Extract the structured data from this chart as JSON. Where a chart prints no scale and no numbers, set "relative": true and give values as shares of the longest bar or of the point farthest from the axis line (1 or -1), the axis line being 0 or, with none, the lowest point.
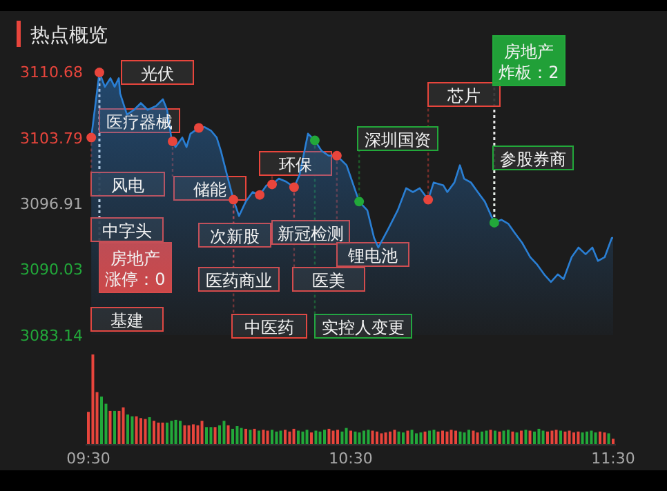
{
  "chart_data": [
    {
      "type": "area",
      "title": "热点概览",
      "xlim": [
        9.5,
        11.5
      ],
      "ylim": [
        3083.14,
        3110.68
      ],
      "yticks": [
        3083.14,
        3090.03,
        3096.91,
        3103.79,
        3110.68
      ],
      "tick_labels": "y",
      "series": [
        {
          "color": "#2a7fd4",
          "x": [
            9.511,
            9.542,
            9.563,
            9.584,
            9.6,
            9.616,
            9.621,
            9.647,
            9.674,
            9.7,
            9.726,
            9.758,
            9.784,
            9.8,
            9.816,
            9.832,
            9.858,
            9.874,
            9.889,
            9.921,
            9.942,
            9.968,
            9.989,
            10.005,
            10.032,
            10.053,
            10.074,
            10.1,
            10.126,
            10.153,
            10.179,
            10.2,
            10.226,
            10.253,
            10.284,
            10.305,
            10.337,
            10.363,
            10.389,
            10.416,
            10.447,
            10.484,
            10.532,
            10.563,
            10.589,
            10.605,
            10.642,
            10.679,
            10.711,
            10.737,
            10.763,
            10.795,
            10.816,
            10.853,
            10.868,
            10.895,
            10.916,
            10.932,
            10.958,
            10.984,
            11.011,
            11.047,
            11.074,
            11.1,
            11.126,
            11.153,
            11.184,
            11.211,
            11.237,
            11.263,
            11.289,
            11.311,
            11.342,
            11.368,
            11.395,
            11.421,
            11.442,
            11.468,
            11.495,
            11.5
          ],
          "values": [
            3103.8,
            3110.6,
            3109.1,
            3110.0,
            3109.1,
            3110.0,
            3108.4,
            3106.2,
            3106.7,
            3107.4,
            3106.7,
            3107.1,
            3107.8,
            3106.7,
            3103.8,
            3102.8,
            3103.8,
            3102.8,
            3104.2,
            3104.8,
            3104.9,
            3104.5,
            3103.8,
            3102.4,
            3099.5,
            3097.3,
            3095.6,
            3097.1,
            3098.1,
            3097.8,
            3098.8,
            3098.9,
            3099.5,
            3099.2,
            3098.6,
            3099.9,
            3104.2,
            3103.5,
            3102.4,
            3101.9,
            3101.9,
            3100.9,
            3097.1,
            3096.2,
            3093.3,
            3092.3,
            3094.2,
            3096.2,
            3098.5,
            3098.1,
            3098.5,
            3097.3,
            3099.1,
            3098.8,
            3098.1,
            3099.1,
            3100.9,
            3099.5,
            3099.1,
            3098.1,
            3097.1,
            3094.9,
            3095.2,
            3094.8,
            3093.8,
            3092.8,
            3091.3,
            3090.5,
            3089.5,
            3088.7,
            3089.5,
            3089.0,
            3091.3,
            3092.3,
            3091.6,
            3092.3,
            3090.9,
            3091.3,
            3093.3,
            3093.3
          ]
        },
        {
          "type": "scatter",
          "marker": "circle",
          "color": "#e8453c",
          "x": [
            9.542,
            9.511,
            9.821,
            9.921,
            10.053,
            10.153,
            10.2,
            10.284,
            10.447,
            10.795
          ],
          "values": [
            3110.6,
            3103.8,
            3103.4,
            3104.8,
            3097.3,
            3097.8,
            3098.9,
            3098.6,
            3101.9,
            3097.3
          ]
        },
        {
          "type": "scatter",
          "marker": "circle",
          "color": "#22a83a",
          "x": [
            10.363,
            10.532,
            11.047
          ],
          "values": [
            3103.5,
            3097.1,
            3094.9
          ]
        }
      ],
      "annotations": [
        {
          "text": "光伏",
          "x": 9.616,
          "y": 3110.0
        },
        {
          "text": "医疗器械",
          "x": 9.542,
          "y": 3110.68
        },
        {
          "text": "风电",
          "x": 9.511,
          "y": 3103.79
        },
        {
          "text": "储能",
          "x": 9.821,
          "y": 3103.4
        },
        "中字头",
        {
          "text": "次新股",
          "x": 10.053,
          "y": 3097.3
        },
        {
          "text": "医药商业",
          "x": 10.053,
          "y": 3097.3
        },
        "基建",
        {
          "text": "中医药",
          "x": 10.053,
          "y": 3097.3
        },
        {
          "text": "环保",
          "x": 10.2,
          "y": 3098.9
        },
        {
          "text": "新冠检测",
          "x": 10.284,
          "y": 3098.6
        },
        {
          "text": "医美",
          "x": 10.284,
          "y": 3098.6
        },
        {
          "text": "锂电池",
          "x": 10.447,
          "y": 3101.9
        },
        {
          "text": "实控人变更",
          "x": 10.363,
          "y": 3103.5
        },
        {
          "text": "深圳国资",
          "x": 10.532,
          "y": 3097.1
        },
        {
          "text": "芯片",
          "x": 10.795,
          "y": 3097.3
        },
        {
          "text": "参股券商",
          "x": 11.047,
          "y": 3094.9
        },
        {
          "text": "房地产涨停：0",
          "x": 9.542,
          "y": 3110.6
        },
        {
          "text": "房地产炸板：2",
          "x": 11.047,
          "y": 3094.9
        }
      ]
    },
    {
      "type": "bar",
      "relative": true,
      "xlim": [
        9.5,
        11.5
      ],
      "xticks": [
        {
          "value": 9.5,
          "label": "09:30"
        },
        {
          "value": 10.5,
          "label": "10:30"
        },
        {
          "value": 11.5,
          "label": "11:30"
        }
      ],
      "tick_labels": "x",
      "x": [
        9.5,
        9.517,
        9.533,
        9.55,
        9.567,
        9.583,
        9.6,
        9.617,
        9.633,
        9.65,
        9.667,
        9.683,
        9.7,
        9.717,
        9.733,
        9.75,
        9.767,
        9.783,
        9.8,
        9.817,
        9.833,
        9.85,
        9.867,
        9.883,
        9.9,
        9.917,
        9.933,
        9.95,
        9.967,
        9.983,
        10.0,
        10.017,
        10.033,
        10.05,
        10.067,
        10.083,
        10.1,
        10.117,
        10.133,
        10.15,
        10.167,
        10.183,
        10.2,
        10.217,
        10.233,
        10.25,
        10.267,
        10.283,
        10.3,
        10.317,
        10.333,
        10.35,
        10.367,
        10.383,
        10.4,
        10.417,
        10.433,
        10.45,
        10.467,
        10.483,
        10.5,
        10.517,
        10.533,
        10.55,
        10.567,
        10.583,
        10.6,
        10.617,
        10.633,
        10.65,
        10.667,
        10.683,
        10.7,
        10.717,
        10.733,
        10.75,
        10.767,
        10.783,
        10.8,
        10.817,
        10.833,
        10.85,
        10.867,
        10.883,
        10.9,
        10.917,
        10.933,
        10.95,
        10.967,
        10.983,
        11.0,
        11.017,
        11.033,
        11.05,
        11.067,
        11.083,
        11.1,
        11.117,
        11.133,
        11.15,
        11.167,
        11.183,
        11.2,
        11.217,
        11.233,
        11.25,
        11.267,
        11.283,
        11.3,
        11.317,
        11.333,
        11.35,
        11.367,
        11.383,
        11.4,
        11.417,
        11.433,
        11.45,
        11.467,
        11.483,
        11.5
      ],
      "values": [
        0.36,
        1,
        0.58,
        0.53,
        0.45,
        0.37,
        0.37,
        0.37,
        0.41,
        0.33,
        0.31,
        0.31,
        0.29,
        0.28,
        0.3,
        0.26,
        0.24,
        0.24,
        0.24,
        0.26,
        0.27,
        0.26,
        0.21,
        0.21,
        0.22,
        0.21,
        0.26,
        0.19,
        0.19,
        0.19,
        0.21,
        0.26,
        0.21,
        0.17,
        0.2,
        0.18,
        0.17,
        0.16,
        0.17,
        0.15,
        0.16,
        0.15,
        0.16,
        0.14,
        0.15,
        0.16,
        0.14,
        0.17,
        0.15,
        0.14,
        0.16,
        0.13,
        0.15,
        0.14,
        0.16,
        0.17,
        0.15,
        0.16,
        0.14,
        0.18,
        0.15,
        0.14,
        0.13,
        0.15,
        0.16,
        0.15,
        0.14,
        0.12,
        0.13,
        0.14,
        0.16,
        0.14,
        0.13,
        0.15,
        0.16,
        0.12,
        0.13,
        0.14,
        0.15,
        0.16,
        0.14,
        0.15,
        0.14,
        0.16,
        0.15,
        0.14,
        0.13,
        0.16,
        0.15,
        0.13,
        0.14,
        0.15,
        0.16,
        0.15,
        0.14,
        0.15,
        0.16,
        0.14,
        0.13,
        0.15,
        0.16,
        0.15,
        0.14,
        0.17,
        0.15,
        0.14,
        0.15,
        0.16,
        0.15,
        0.14,
        0.15,
        0.13,
        0.14,
        0.13,
        0.14,
        0.15,
        0.13,
        0.14,
        0.13,
        0.12,
        0.06
      ],
      "colors": [
        "#e8453c",
        "#e8453c",
        "#e8453c",
        "#22a83a",
        "#22a83a",
        "#e8453c",
        "#22a83a",
        "#e8453c",
        "#e8453c",
        "#22a83a",
        "#22a83a",
        "#e8453c",
        "#e8453c",
        "#e8453c",
        "#22a83a",
        "#e8453c",
        "#e8453c",
        "#e8453c",
        "#22a83a",
        "#22a83a",
        "#22a83a",
        "#22a83a",
        "#e8453c",
        "#e8453c",
        "#e8453c",
        "#e8453c",
        "#e8453c",
        "#22a83a",
        "#22a83a",
        "#e8453c",
        "#22a83a",
        "#22a83a",
        "#e8453c",
        "#22a83a",
        "#22a83a",
        "#22a83a",
        "#e8453c",
        "#22a83a",
        "#e8453c",
        "#22a83a",
        "#e8453c",
        "#e8453c",
        "#22a83a",
        "#22a83a",
        "#22a83a",
        "#e8453c",
        "#e8453c",
        "#e8453c",
        "#22a83a",
        "#22a83a",
        "#22a83a",
        "#e8453c",
        "#22a83a",
        "#22a83a",
        "#22a83a",
        "#e8453c",
        "#e8453c",
        "#e8453c",
        "#22a83a",
        "#22a83a",
        "#e8453c",
        "#22a83a",
        "#22a83a",
        "#22a83a",
        "#22a83a",
        "#e8453c",
        "#e8453c",
        "#e8453c",
        "#e8453c",
        "#e8453c",
        "#e8453c",
        "#22a83a",
        "#22a83a",
        "#e8453c",
        "#22a83a",
        "#22a83a",
        "#22a83a",
        "#e8453c",
        "#22a83a",
        "#22a83a",
        "#e8453c",
        "#e8453c",
        "#e8453c",
        "#e8453c",
        "#e8453c",
        "#22a83a",
        "#22a83a",
        "#22a83a",
        "#e8453c",
        "#e8453c",
        "#22a83a",
        "#22a83a",
        "#e8453c",
        "#22a83a",
        "#e8453c",
        "#22a83a",
        "#22a83a",
        "#e8453c",
        "#22a83a",
        "#e8453c",
        "#22a83a",
        "#e8453c",
        "#22a83a",
        "#22a83a",
        "#22a83a",
        "#e8453c",
        "#e8453c",
        "#e8453c",
        "#22a83a",
        "#e8453c",
        "#e8453c",
        "#e8453c",
        "#e8453c",
        "#22a83a",
        "#22a83a",
        "#22a83a",
        "#22a83a",
        "#e8453c",
        "#e8453c",
        "#22a83a",
        "#e8453c"
      ]
    }
  ]
}
